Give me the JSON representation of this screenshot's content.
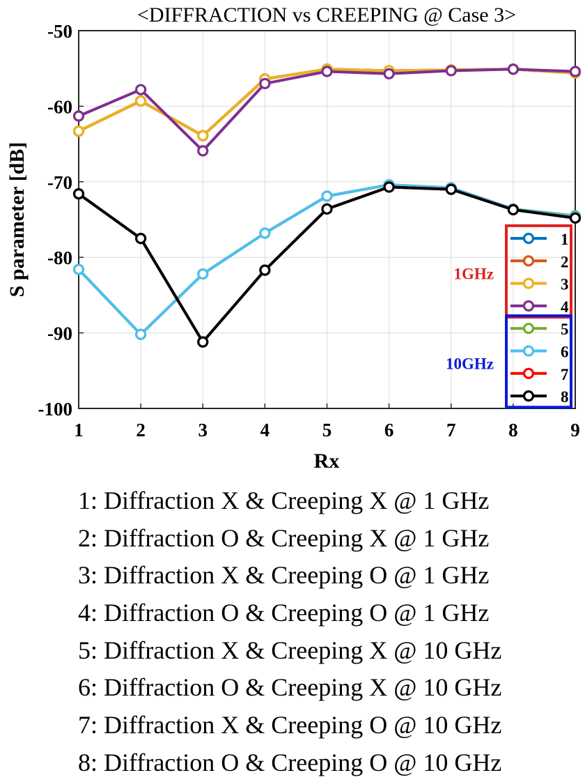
{
  "chart_data": {
    "type": "line",
    "title": "<DIFFRACTION vs CREEPING @ Case 3>",
    "xlabel": "Rx",
    "ylabel": "S parameter [dB]",
    "xlim": [
      1,
      9
    ],
    "ylim": [
      -100,
      -50
    ],
    "x": [
      1,
      2,
      3,
      4,
      5,
      6,
      7,
      8,
      9
    ],
    "xticks": [
      "1",
      "2",
      "3",
      "4",
      "5",
      "6",
      "7",
      "8",
      "9"
    ],
    "yticks": [
      "-50",
      "-60",
      "-70",
      "-80",
      "-90",
      "-100"
    ],
    "grid": true,
    "series": [
      {
        "name": "1",
        "color": "#0072BD",
        "values": [
          -63.3,
          -59.3,
          -63.9,
          -56.4,
          -55.1,
          -55.3,
          -55.2,
          -55.1,
          -55.6
        ]
      },
      {
        "name": "2",
        "color": "#D95319",
        "values": [
          -63.3,
          -59.3,
          -63.9,
          -56.4,
          -55.1,
          -55.3,
          -55.2,
          -55.1,
          -55.6
        ]
      },
      {
        "name": "3",
        "color": "#EDB120",
        "values": [
          -63.3,
          -59.3,
          -63.9,
          -56.4,
          -55.1,
          -55.3,
          -55.2,
          -55.1,
          -55.6
        ]
      },
      {
        "name": "4",
        "color": "#7E2F8E",
        "values": [
          -61.3,
          -57.8,
          -65.9,
          -57.0,
          -55.4,
          -55.7,
          -55.3,
          -55.1,
          -55.4
        ]
      },
      {
        "name": "5",
        "color": "#77AC30",
        "values": [
          -81.6,
          -90.2,
          -82.2,
          -76.8,
          -71.9,
          -70.4,
          -70.8,
          -73.6,
          -74.5
        ]
      },
      {
        "name": "6",
        "color": "#4DBEEE",
        "values": [
          -81.6,
          -90.2,
          -82.2,
          -76.8,
          -71.9,
          -70.4,
          -70.8,
          -73.6,
          -74.6
        ]
      },
      {
        "name": "7",
        "color": "#FF0000",
        "values": [
          -71.6,
          -77.5,
          -91.2,
          -81.7,
          -73.6,
          -70.7,
          -71.0,
          -73.7,
          -74.8
        ]
      },
      {
        "name": "8",
        "color": "#000000",
        "values": [
          -71.6,
          -77.5,
          -91.2,
          -81.7,
          -73.6,
          -70.7,
          -71.0,
          -73.7,
          -74.8
        ]
      }
    ],
    "legend_position": "bottom-right",
    "legend_groups": [
      {
        "label": "1GHz",
        "color": "#E02020",
        "members": [
          "1",
          "2",
          "3",
          "4"
        ]
      },
      {
        "label": "10GHz",
        "color": "#0A1AD8",
        "members": [
          "5",
          "6",
          "7",
          "8"
        ]
      }
    ]
  },
  "captions": [
    "1: Diffraction X & Creeping X @ 1 GHz",
    "2: Diffraction O & Creeping X @ 1 GHz",
    "3: Diffraction X & Creeping O @ 1 GHz",
    "4: Diffraction O & Creeping O @ 1 GHz",
    "5: Diffraction X & Creeping X @ 10 GHz",
    "6: Diffraction O & Creeping X @ 10 GHz",
    "7: Diffraction X & Creeping O @ 10 GHz",
    "8: Diffraction O & Creeping O @ 10 GHz"
  ]
}
